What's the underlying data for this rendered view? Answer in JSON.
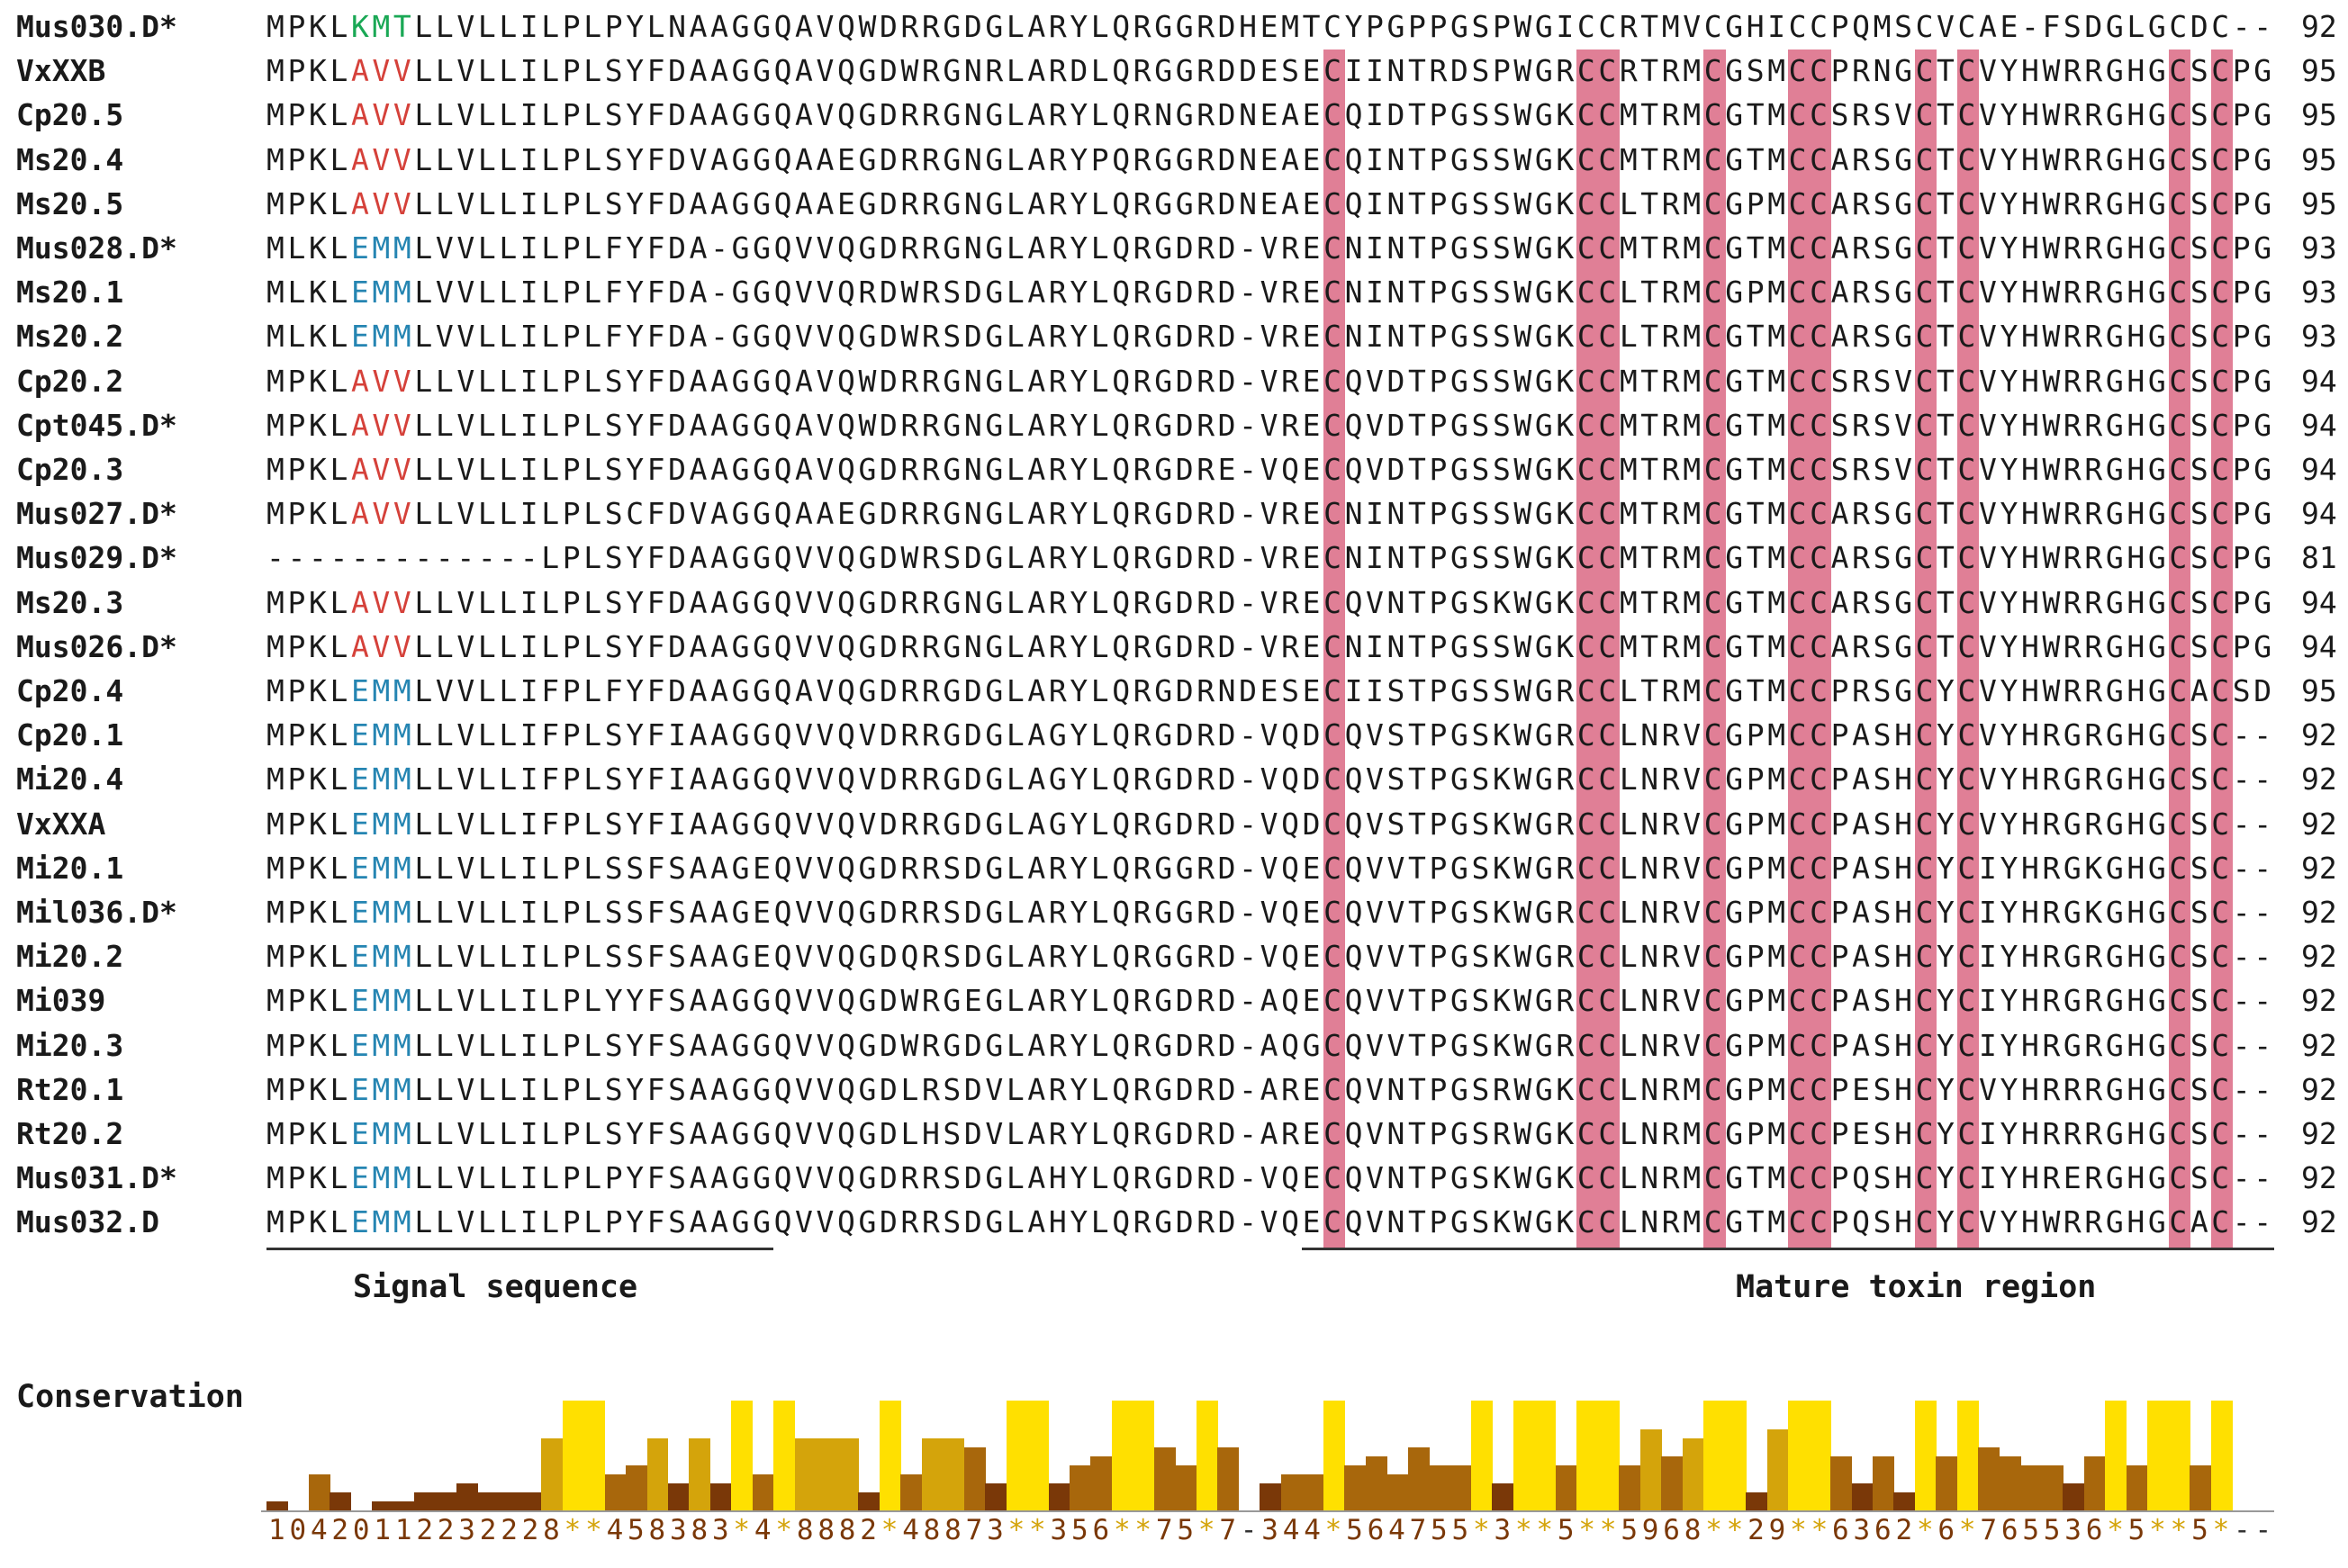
{
  "alignment": {
    "rows": [
      {
        "name": "Mus030.D*",
        "seq": "MPKLKMTLLVLLILPLPYLNAAGGQAVQWDRRGDGLARYLQRGGRDHEMTCYPGPPGSPWGICCRTMVCGHICCPQMSCVCAE-FSDGLGCDC--",
        "count": "92",
        "motif": "KMT"
      },
      {
        "name": "VxXXB",
        "seq": "MPKLAVVLLVLLILPLSYFDAAGGQAVQGDWRGNRLARDLQRGGRDDESECIINTRDSPWGRCCRTRMCGSMCCPRNGCTCVYHWRRGHGCSCPG",
        "count": "95",
        "motif": "AVV"
      },
      {
        "name": "Cp20.5",
        "seq": "MPKLAVVLLVLLILPLSYFDAAGGQAVQGDRRGNGLARYLQRNGRDNEAECQIDTPGSSWGKCCMTRMCGTMCCSRSVCTCVYHWRRGHGCSCPG",
        "count": "95",
        "motif": "AVV"
      },
      {
        "name": "Ms20.4",
        "seq": "MPKLAVVLLVLLILPLSYFDVAGGQAAEGDRRGNGLARYPQRGGRDNEAECQINTPGSSWGKCCMTRMCGTMCCARSGCTCVYHWRRGHGCSCPG",
        "count": "95",
        "motif": "AVV"
      },
      {
        "name": "Ms20.5",
        "seq": "MPKLAVVLLVLLILPLSYFDAAGGQAAEGDRRGNGLARYLQRGGRDNEAECQINTPGSSWGKCCLTRMCGPMCCARSGCTCVYHWRRGHGCSCPG",
        "count": "95",
        "motif": "AVV"
      },
      {
        "name": "Mus028.D*",
        "seq": "MLKLEMMLVVLLILPLFYFDA-GGQVVQGDRRGNGLARYLQRGDRD-VRECNINTPGSSWGKCCMTRMCGTMCCARSGCTCVYHWRRGHGCSCPG",
        "count": "93",
        "motif": "EMM"
      },
      {
        "name": "Ms20.1",
        "seq": "MLKLEMMLVVLLILPLFYFDA-GGQVVQRDWRSDGLARYLQRGDRD-VRECNINTPGSSWGKCCLTRMCGPMCCARSGCTCVYHWRRGHGCSCPG",
        "count": "93",
        "motif": "EMM"
      },
      {
        "name": "Ms20.2",
        "seq": "MLKLEMMLVVLLILPLFYFDA-GGQVVQGDWRSDGLARYLQRGDRD-VRECNINTPGSSWGKCCLTRMCGTMCCARSGCTCVYHWRRGHGCSCPG",
        "count": "93",
        "motif": "EMM"
      },
      {
        "name": "Cp20.2",
        "seq": "MPKLAVVLLVLLILPLSYFDAAGGQAVQWDRRGNGLARYLQRGDRD-VRECQVDTPGSSWGKCCMTRMCGTMCCSRSVCTCVYHWRRGHGCSCPG",
        "count": "94",
        "motif": "AVV"
      },
      {
        "name": "Cpt045.D*",
        "seq": "MPKLAVVLLVLLILPLSYFDAAGGQAVQWDRRGNGLARYLQRGDRD-VRECQVDTPGSSWGKCCMTRMCGTMCCSRSVCTCVYHWRRGHGCSCPG",
        "count": "94",
        "motif": "AVV"
      },
      {
        "name": "Cp20.3",
        "seq": "MPKLAVVLLVLLILPLSYFDAAGGQAVQGDRRGNGLARYLQRGDRE-VQECQVDTPGSSWGKCCMTRMCGTMCCSRSVCTCVYHWRRGHGCSCPG",
        "count": "94",
        "motif": "AVV"
      },
      {
        "name": "Mus027.D*",
        "seq": "MPKLAVVLLVLLILPLSCFDVAGGQAAEGDRRGNGLARYLQRGDRD-VRECNINTPGSSWGKCCMTRMCGTMCCARSGCTCVYHWRRGHGCSCPG",
        "count": "94",
        "motif": "AVV"
      },
      {
        "name": "Mus029.D*",
        "seq": "-------------LPLSYFDAAGGQVVQGDWRSDGLARYLQRGDRD-VRECNINTPGSSWGKCCMTRMCGTMCCARSGCTCVYHWRRGHGCSCPG",
        "count": "81",
        "motif": ""
      },
      {
        "name": "Ms20.3",
        "seq": "MPKLAVVLLVLLILPLSYFDAAGGQVVQGDRRGNGLARYLQRGDRD-VRECQVNTPGSKWGKCCMTRMCGTMCCARSGCTCVYHWRRGHGCSCPG",
        "count": "94",
        "motif": "AVV"
      },
      {
        "name": "Mus026.D*",
        "seq": "MPKLAVVLLVLLILPLSYFDAAGGQVVQGDRRGNGLARYLQRGDRD-VRECNINTPGSSWGKCCMTRMCGTMCCARSGCTCVYHWRRGHGCSCPG",
        "count": "94",
        "motif": "AVV"
      },
      {
        "name": "Cp20.4",
        "seq": "MPKLEMMLVVLLIFPLFYFDAAGGQAVQGDRRGDGLARYLQRGDRNDESECIISTPGSSWGRCCLTRMCGTMCCPRSGCYCVYHWRRGHGCACSD",
        "count": "95",
        "motif": "EMM"
      },
      {
        "name": "Cp20.1",
        "seq": "MPKLEMMLLVLLIFPLSYFIAAGGQVVQVDRRGDGLAGYLQRGDRD-VQDCQVSTPGSKWGRCCLNRVCGPMCCPASHCYCVYHRGRGHGCSC--",
        "count": "92",
        "motif": "EMM"
      },
      {
        "name": "Mi20.4",
        "seq": "MPKLEMMLLVLLIFPLSYFIAAGGQVVQVDRRGDGLAGYLQRGDRD-VQDCQVSTPGSKWGRCCLNRVCGPMCCPASHCYCVYHRGRGHGCSC--",
        "count": "92",
        "motif": "EMM"
      },
      {
        "name": "VxXXA",
        "seq": "MPKLEMMLLVLLIFPLSYFIAAGGQVVQVDRRGDGLAGYLQRGDRD-VQDCQVSTPGSKWGRCCLNRVCGPMCCPASHCYCVYHRGRGHGCSC--",
        "count": "92",
        "motif": "EMM"
      },
      {
        "name": "Mi20.1",
        "seq": "MPKLEMMLLVLLILPLSSFSAAGEQVVQGDRRSDGLARYLQRGGRD-VQECQVVTPGSKWGRCCLNRVCGPMCCPASHCYCIYHRGKGHGCSC--",
        "count": "92",
        "motif": "EMM"
      },
      {
        "name": "Mil036.D*",
        "seq": "MPKLEMMLLVLLILPLSSFSAAGEQVVQGDRRSDGLARYLQRGGRD-VQECQVVTPGSKWGRCCLNRVCGPMCCPASHCYCIYHRGKGHGCSC--",
        "count": "92",
        "motif": "EMM"
      },
      {
        "name": "Mi20.2",
        "seq": "MPKLEMMLLVLLILPLSSFSAAGEQVVQGDQRSDGLARYLQRGGRD-VQECQVVTPGSKWGRCCLNRVCGPMCCPASHCYCIYHRGRGHGCSC--",
        "count": "92",
        "motif": "EMM"
      },
      {
        "name": "Mi039",
        "seq": "MPKLEMMLLVLLILPLYYFSAAGGQVVQGDWRGEGLARYLQRGDRD-AQECQVVTPGSKWGRCCLNRVCGPMCCPASHCYCIYHRGRGHGCSC--",
        "count": "92",
        "motif": "EMM"
      },
      {
        "name": "Mi20.3",
        "seq": "MPKLEMMLLVLLILPLSYFSAAGGQVVQGDWRGDGLARYLQRGDRD-AQGCQVVTPGSKWGRCCLNRVCGPMCCPASHCYCIYHRGRGHGCSC--",
        "count": "92",
        "motif": "EMM"
      },
      {
        "name": "Rt20.1",
        "seq": "MPKLEMMLLVLLILPLSYFSAAGGQVVQGDLRSDVLARYLQRGDRD-ARECQVNTPGSRWGKCCLNRMCGPMCCPESHCYCVYHRRRGHGCSC--",
        "count": "92",
        "motif": "EMM"
      },
      {
        "name": "Rt20.2",
        "seq": "MPKLEMMLLVLLILPLSYFSAAGGQVVQGDLHSDVLARYLQRGDRD-ARECQVNTPGSRWGKCCLNRMCGPMCCPESHCYCIYHRRRGHGCSC--",
        "count": "92",
        "motif": "EMM"
      },
      {
        "name": "Mus031.D*",
        "seq": "MPKLEMMLLVLLILPLPYFSAAGGQVVQGDRRSDGLAHYLQRGDRD-VQECQVNTPGSKWGKCCLNRMCGTMCCPQSHCYCIYHRERGHGCSC--",
        "count": "92",
        "motif": "EMM"
      },
      {
        "name": "Mus032.D",
        "seq": "MPKLEMMLLVLLILPLPYFSAAGGQVVQGDRRSDGLAHYLQRGDRD-VQECQVNTPGSKWGKCCLNRMCGTMCCPQSHCYCVYHWRRGHGCAC--",
        "count": "92",
        "motif": "EMM"
      }
    ],
    "cysteine_columns": [
      50,
      62,
      63,
      68,
      72,
      73,
      78,
      80,
      90,
      92
    ],
    "motif_start_column": 4,
    "motif_length": 3,
    "colors": {
      "text": "#1a1a1a",
      "cys_highlight": "#e07f96",
      "motif_KMT": "#1aa855",
      "motif_AVV": "#d5413a",
      "motif_EMM": "#2585b2"
    }
  },
  "regions": {
    "signal_label": "Signal sequence",
    "mature_label": "Mature toxin region"
  },
  "conservation": {
    "label": "Conservation",
    "scores": "10420112232228**458383*4*8882*48873**356**75*7-344*564755*3**5**5968**29**6362*6*765536*5**5*--",
    "colors": {
      "low": "#7a3808",
      "mid": "#a8670c",
      "high": "#d4a40b",
      "star": "#ffe000"
    }
  }
}
